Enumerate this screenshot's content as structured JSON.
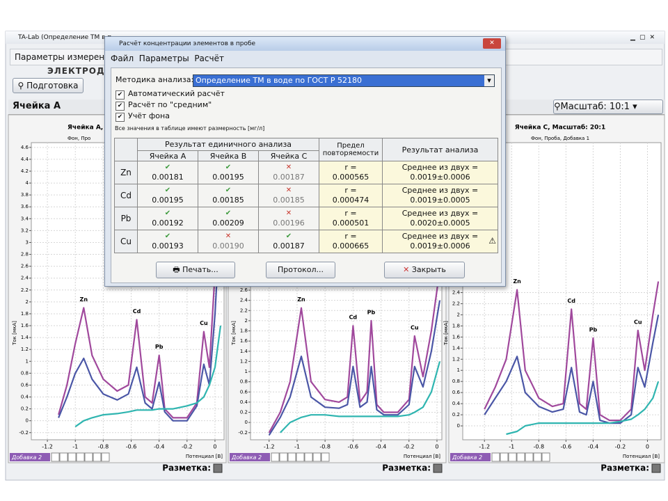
{
  "window": {
    "title": "TA-Lab (Определение ТМ в п",
    "menu": "Параметры измерен",
    "toolbar_group": "ЭЛЕКТРОДЫ",
    "toolbar_button": "Подготовка",
    "panel_title": "Ячейка А",
    "scale": "Масштаб: 10:1",
    "markup_label": "Разметка:",
    "addition_tab": "Добавка 2"
  },
  "chart_data": [
    {
      "type": "line",
      "title": "Ячейка А,",
      "subtitle": "Фон, Про",
      "xlabel": "Потенциал [В]",
      "ylabel": "Ток [мкА]",
      "grid": true,
      "peak_labels": [
        "Zn",
        "Cd",
        "Pb",
        "Cu"
      ],
      "xlim": [
        -1.315,
        0.065
      ],
      "xticks": [
        -1.2,
        -1,
        -0.8,
        -0.6,
        -0.4,
        -0.2,
        0
      ],
      "ylim": [
        -0.32,
        4.68
      ],
      "yticks": [
        -0.2,
        0,
        0.2,
        0.4,
        0.6,
        0.8,
        1,
        1.2,
        1.4,
        1.6,
        1.8,
        2,
        2.2,
        2.4,
        2.6,
        2.8,
        3,
        3.2,
        3.4,
        3.6,
        3.8,
        4,
        4.2,
        4.4,
        4.6
      ],
      "x": [
        -1.12,
        -1.06,
        -1.0,
        -0.94,
        -0.88,
        -0.8,
        -0.7,
        -0.62,
        -0.56,
        -0.5,
        -0.45,
        -0.4,
        -0.36,
        -0.3,
        -0.2,
        -0.13,
        -0.08,
        -0.04,
        0,
        0.04
      ],
      "series": [
        {
          "color": "#a0489c",
          "values": [
            0.1,
            0.6,
            1.3,
            1.9,
            1.1,
            0.7,
            0.5,
            0.6,
            1.7,
            0.4,
            0.3,
            1.1,
            0.2,
            0.05,
            0.05,
            0.3,
            1.5,
            0.9,
            2.5,
            4.4
          ]
        },
        {
          "color": "#4a56a6",
          "values": [
            0.05,
            0.4,
            0.8,
            1.05,
            0.7,
            0.45,
            0.35,
            0.45,
            0.9,
            0.3,
            0.2,
            0.65,
            0.15,
            0.0,
            0.0,
            0.25,
            0.95,
            0.6,
            1.8,
            3.5
          ]
        },
        {
          "color": "#2fb5b0",
          "values": [
            null,
            null,
            -0.1,
            0.0,
            0.05,
            0.1,
            0.12,
            0.15,
            0.18,
            0.18,
            0.18,
            0.2,
            0.2,
            0.2,
            0.25,
            0.3,
            0.4,
            0.6,
            0.9,
            1.6
          ]
        }
      ]
    },
    {
      "type": "line",
      "xlabel": "Потенциал [В]",
      "ylabel": "Ток [мкА]",
      "grid": true,
      "peak_labels": [
        "Zn",
        "Cd",
        "Pb",
        "Cu"
      ],
      "xlim": [
        -1.333,
        0.035
      ],
      "xticks": [
        -1.2,
        -1,
        -0.8,
        -0.6,
        -0.4,
        -0.2,
        0
      ],
      "ylim": [
        -0.34,
        5.5
      ],
      "yticks": [
        -0.2,
        0,
        0.2,
        0.4,
        0.6,
        0.8,
        1,
        1.2,
        1.4,
        1.6,
        1.8,
        2,
        2.2,
        2.4,
        2.6
      ],
      "x": [
        -1.2,
        -1.12,
        -1.05,
        -0.97,
        -0.9,
        -0.8,
        -0.7,
        -0.64,
        -0.6,
        -0.55,
        -0.5,
        -0.47,
        -0.43,
        -0.38,
        -0.28,
        -0.2,
        -0.16,
        -0.1,
        -0.04,
        0.02
      ],
      "series": [
        {
          "color": "#a0489c",
          "values": [
            -0.2,
            0.2,
            0.8,
            2.25,
            0.8,
            0.45,
            0.4,
            0.5,
            1.9,
            0.4,
            0.6,
            2.0,
            0.35,
            0.2,
            0.2,
            0.45,
            1.7,
            0.9,
            1.8,
            3.0
          ]
        },
        {
          "color": "#4a56a6",
          "values": [
            -0.25,
            0.1,
            0.5,
            1.3,
            0.5,
            0.3,
            0.28,
            0.35,
            1.1,
            0.3,
            0.4,
            1.1,
            0.25,
            0.15,
            0.15,
            0.35,
            1.1,
            0.7,
            1.4,
            2.4
          ]
        },
        {
          "color": "#2fb5b0",
          "values": [
            null,
            -0.2,
            0.0,
            0.1,
            0.15,
            0.15,
            0.12,
            0.12,
            0.12,
            0.12,
            0.12,
            0.12,
            0.12,
            0.12,
            0.12,
            0.15,
            0.2,
            0.3,
            0.6,
            1.2
          ]
        }
      ]
    },
    {
      "type": "line",
      "title": "Ячейка C, Масштаб: 20:1",
      "subtitle": "Фон, Проба, Добавка 1",
      "xlabel": "Потенциал [В]",
      "ylabel": "Ток [мкА]",
      "grid": true,
      "peak_labels": [
        "Zn",
        "Cd",
        "Pb",
        "Cu"
      ],
      "xlim": [
        -1.36,
        0.1
      ],
      "xticks": [
        -1.2,
        -1,
        -0.8,
        -0.6,
        -0.4,
        -0.2,
        0
      ],
      "ylim": [
        -0.25,
        5.1
      ],
      "yticks": [
        0,
        0.2,
        0.4,
        0.6,
        0.8,
        1,
        1.2,
        1.4,
        1.6,
        1.8,
        2,
        2.2,
        2.4
      ],
      "x": [
        -1.2,
        -1.12,
        -1.04,
        -0.96,
        -0.9,
        -0.8,
        -0.7,
        -0.62,
        -0.56,
        -0.5,
        -0.45,
        -0.4,
        -0.35,
        -0.28,
        -0.2,
        -0.12,
        -0.07,
        -0.02,
        0.04,
        0.08
      ],
      "series": [
        {
          "color": "#a0489c",
          "values": [
            0.3,
            0.7,
            1.2,
            2.45,
            1.0,
            0.5,
            0.35,
            0.4,
            2.1,
            0.4,
            0.3,
            1.58,
            0.2,
            0.1,
            0.1,
            0.3,
            1.72,
            1.0,
            2.0,
            2.6
          ]
        },
        {
          "color": "#4a56a6",
          "values": [
            0.2,
            0.5,
            0.8,
            1.25,
            0.6,
            0.35,
            0.25,
            0.3,
            1.05,
            0.25,
            0.2,
            0.8,
            0.1,
            0.05,
            0.05,
            0.2,
            1.05,
            0.7,
            1.5,
            2.0
          ]
        },
        {
          "color": "#2fb5b0",
          "values": [
            null,
            null,
            -0.15,
            -0.1,
            0.0,
            0.05,
            0.05,
            0.05,
            0.05,
            0.05,
            0.05,
            0.05,
            0.05,
            0.05,
            0.08,
            0.12,
            0.2,
            0.3,
            0.5,
            0.8
          ]
        }
      ]
    }
  ],
  "dialog": {
    "title": "Расчёт концентрации элементов в пробе",
    "menu": [
      "Файл",
      "Параметры",
      "Расчёт"
    ],
    "method_label": "Методика анализа:",
    "method": "Определение ТМ в воде по ГОСТ Р 52180",
    "options": [
      {
        "label": "Автоматический расчёт",
        "checked": true
      },
      {
        "label": "Расчёт по \"средним\"",
        "checked": true
      },
      {
        "label": "Учёт фона",
        "checked": true
      }
    ],
    "units_note": "Все значения в таблице имеют размерность [мг/л]",
    "table": {
      "group_header": "Результат единичного анализа",
      "cells": [
        "Ячейка A",
        "Ячейка B",
        "Ячейка C"
      ],
      "repeat_header": "Предел повторяемости",
      "result_header": "Результат анализа",
      "rows": [
        {
          "element": "Zn",
          "values": [
            "0.00181",
            "0.00195",
            "0.00187"
          ],
          "valid": [
            true,
            true,
            false
          ],
          "r_label": "r =",
          "r": "0.000565",
          "result_label": "Среднее из двух =",
          "result": "0.0019±0.0006",
          "warning": false
        },
        {
          "element": "Cd",
          "values": [
            "0.00195",
            "0.00185",
            "0.00185"
          ],
          "valid": [
            true,
            true,
            false
          ],
          "r_label": "r =",
          "r": "0.000474",
          "result_label": "Среднее из двух =",
          "result": "0.0019±0.0005",
          "warning": false
        },
        {
          "element": "Pb",
          "values": [
            "0.00192",
            "0.00209",
            "0.00196"
          ],
          "valid": [
            true,
            true,
            false
          ],
          "r_label": "r =",
          "r": "0.000501",
          "result_label": "Среднее из двух =",
          "result": "0.0020±0.0005",
          "warning": false
        },
        {
          "element": "Cu",
          "values": [
            "0.00193",
            "0.00190",
            "0.00187"
          ],
          "valid": [
            true,
            false,
            true
          ],
          "r_label": "r =",
          "r": "0.000665",
          "result_label": "Среднее из двух =",
          "result": "0.0019±0.0006",
          "warning": true
        }
      ]
    },
    "buttons": [
      "Печать...",
      "Протокол...",
      "Закрыть"
    ]
  }
}
